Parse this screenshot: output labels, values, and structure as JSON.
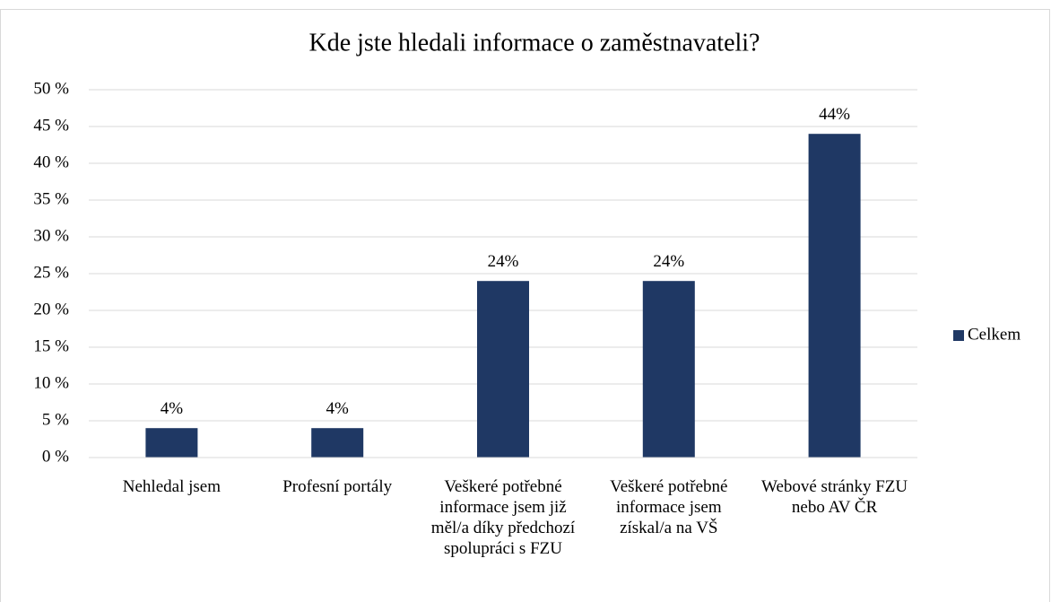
{
  "chart_data": {
    "type": "bar",
    "title": "Kde jste hledali informace o zaměstnavateli?",
    "categories": [
      "Nehledal jsem",
      "Profesní portály",
      "Veškeré potřebné informace jsem již měl/a díky předchozí spolupráci s FZU",
      "Veškeré potřebné informace jsem získal/a na VŠ",
      "Webové stránky FZU nebo AV ČR"
    ],
    "series": [
      {
        "name": "Celkem",
        "color": "#1f3864",
        "values": [
          4,
          4,
          24,
          24,
          44
        ],
        "value_labels": [
          "4%",
          "4%",
          "24%",
          "24%",
          "44%"
        ]
      }
    ],
    "ylim": [
      0,
      50
    ],
    "yticks": [
      {
        "value": 0,
        "label": "0 %"
      },
      {
        "value": 5,
        "label": "5 %"
      },
      {
        "value": 10,
        "label": "10 %"
      },
      {
        "value": 15,
        "label": "15 %"
      },
      {
        "value": 20,
        "label": "20 %"
      },
      {
        "value": 25,
        "label": "25 %"
      },
      {
        "value": 30,
        "label": "30 %"
      },
      {
        "value": 35,
        "label": "35 %"
      },
      {
        "value": 40,
        "label": "40 %"
      },
      {
        "value": 45,
        "label": "45 %"
      },
      {
        "value": 50,
        "label": "50 %"
      }
    ],
    "grid": true,
    "legend": "right"
  }
}
